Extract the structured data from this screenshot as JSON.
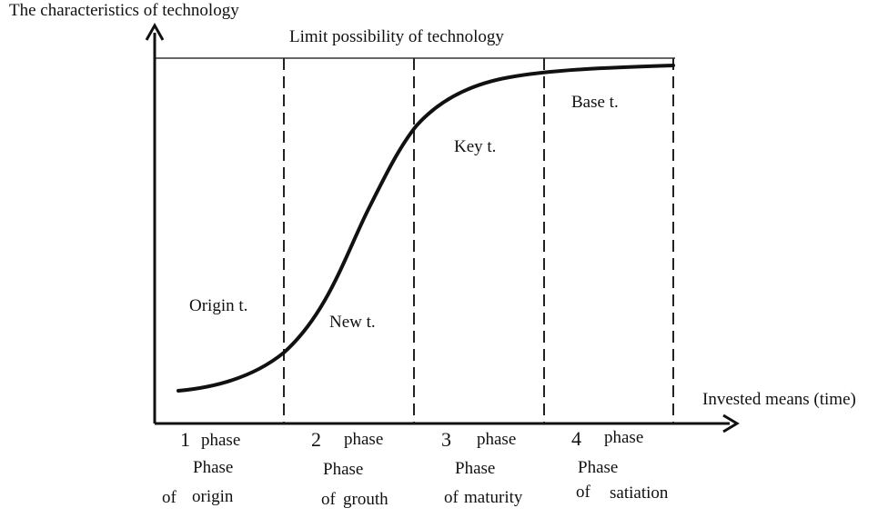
{
  "y_axis_label": "The characteristics of technology",
  "x_axis_label": "Invested means (time)",
  "limit_label": "Limit possibility of technology",
  "curve_labels": {
    "origin": "Origin t.",
    "new": "New t.",
    "key": "Key t.",
    "base": "Base t."
  },
  "phases": [
    {
      "number": "1",
      "word": "phase",
      "line1": "Phase",
      "line2a": "of",
      "line2b": "origin"
    },
    {
      "number": "2",
      "word": "phase",
      "line1": "Phase",
      "line2a": "of",
      "line2b": "grouth"
    },
    {
      "number": "3",
      "word": "phase",
      "line1": "Phase",
      "line2a": "of",
      "line2b": "maturity"
    },
    {
      "number": "4",
      "word": "phase",
      "line1": "Phase",
      "line2a": "of",
      "line2b": "satiation"
    }
  ]
}
